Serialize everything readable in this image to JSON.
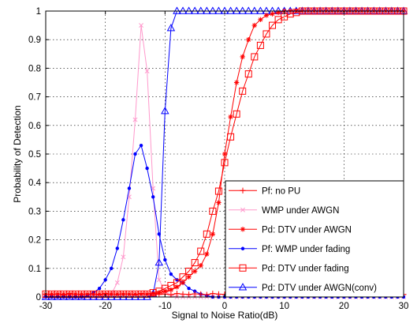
{
  "chart_data": {
    "type": "line",
    "xlabel": "Signal to Noise Ratio(dB)",
    "ylabel": "Probability of Detection",
    "xlim": [
      -30,
      30
    ],
    "ylim": [
      0,
      1
    ],
    "xticks": [
      -30,
      -20,
      -10,
      0,
      10,
      20,
      30
    ],
    "yticks": [
      0,
      0.1,
      0.2,
      0.3,
      0.4,
      0.5,
      0.6,
      0.7,
      0.8,
      0.9,
      1
    ],
    "grid": true,
    "legend_position": "bottom-right",
    "series": [
      {
        "name": "Pf: no PU",
        "color": "#ff0000",
        "marker": "plus",
        "x": [
          -30,
          -29,
          -28,
          -27,
          -26,
          -25,
          -24,
          -23,
          -22,
          -21,
          -20,
          -19,
          -18,
          -17,
          -16,
          -15,
          -14,
          -13,
          -12,
          -11,
          -10,
          -9,
          -8,
          -7,
          -6,
          -5,
          -4,
          -3,
          -2,
          -1,
          0,
          1,
          2,
          3,
          4,
          5,
          6,
          7,
          8,
          9,
          10,
          11,
          12,
          13,
          14,
          15,
          16,
          17,
          18,
          19,
          20,
          21,
          22,
          23,
          24,
          25,
          26,
          27,
          28,
          29,
          30
        ],
        "y": [
          0.01,
          0.009,
          0.011,
          0.008,
          0.012,
          0.01,
          0.009,
          0.011,
          0.01,
          0.008,
          0.012,
          0.01,
          0.009,
          0.011,
          0.01,
          0.008,
          0.012,
          0.01,
          0.009,
          0.011,
          0.01,
          0.008,
          0.012,
          0.01,
          0.009,
          0.011,
          0.01,
          0.008,
          0.012,
          0.01,
          0.009,
          0.011,
          0.01,
          0.008,
          0.012,
          0.01,
          0.009,
          0.011,
          0.01,
          0.008,
          0.012,
          0.01,
          0.009,
          0.011,
          0.01,
          0.008,
          0.012,
          0.01,
          0.009,
          0.011,
          0.01,
          0.008,
          0.012,
          0.01,
          0.009,
          0.011,
          0.01,
          0.008,
          0.012,
          0.01,
          0.009
        ]
      },
      {
        "name": "WMP under AWGN",
        "color": "#ff99cc",
        "marker": "x",
        "x": [
          -30,
          -29,
          -28,
          -27,
          -26,
          -25,
          -24,
          -23,
          -22,
          -21,
          -20,
          -19,
          -18,
          -17,
          -16,
          -15,
          -14,
          -13,
          -12,
          -11,
          -10,
          -9,
          -8,
          -7,
          -6,
          -5,
          -4,
          -3,
          -2,
          -1,
          0,
          1,
          2,
          3,
          4,
          5,
          6,
          7,
          8,
          9,
          10,
          11,
          12,
          13,
          14,
          15,
          16,
          17,
          18,
          19,
          20,
          21,
          22,
          23,
          24,
          25,
          26,
          27,
          28,
          29,
          30
        ],
        "y": [
          0,
          0,
          0,
          0,
          0,
          0,
          0,
          0,
          0,
          0,
          0.002,
          0.01,
          0.05,
          0.14,
          0.35,
          0.62,
          0.95,
          0.79,
          0.38,
          0.06,
          0.02,
          0.005,
          0,
          0,
          0,
          0,
          0,
          0,
          0,
          0,
          0,
          0,
          0,
          0,
          0,
          0,
          0,
          0,
          0,
          0,
          0,
          0,
          0,
          0,
          0,
          0,
          0,
          0,
          0,
          0,
          0,
          0,
          0,
          0,
          0,
          0,
          0,
          0,
          0,
          0,
          0
        ]
      },
      {
        "name": "Pd: DTV under AWGN",
        "color": "#ff0000",
        "marker": "star",
        "x": [
          -30,
          -29,
          -28,
          -27,
          -26,
          -25,
          -24,
          -23,
          -22,
          -21,
          -20,
          -19,
          -18,
          -17,
          -16,
          -15,
          -14,
          -13,
          -12,
          -11,
          -10,
          -9,
          -8,
          -7,
          -6,
          -5,
          -4,
          -3,
          -2,
          -1,
          0,
          1,
          2,
          3,
          4,
          5,
          6,
          7,
          8,
          9,
          10,
          11,
          12,
          13,
          14,
          15,
          16,
          17,
          18,
          19,
          20,
          21,
          22,
          23,
          24,
          25,
          26,
          27,
          28,
          29,
          30
        ],
        "y": [
          0.01,
          0.01,
          0.01,
          0.01,
          0.01,
          0.01,
          0.01,
          0.01,
          0.01,
          0.01,
          0.01,
          0.01,
          0.01,
          0.01,
          0.01,
          0.01,
          0.01,
          0.01,
          0.012,
          0.015,
          0.02,
          0.025,
          0.035,
          0.05,
          0.07,
          0.09,
          0.11,
          0.15,
          0.22,
          0.33,
          0.5,
          0.63,
          0.75,
          0.84,
          0.9,
          0.95,
          0.97,
          0.985,
          0.99,
          0.995,
          1,
          1,
          1,
          1,
          1,
          1,
          1,
          1,
          1,
          1,
          1,
          1,
          1,
          1,
          1,
          1,
          1,
          1,
          1,
          1,
          1
        ]
      },
      {
        "name": "Pf: WMP under fading",
        "color": "#0000ff",
        "marker": "dot",
        "x": [
          -30,
          -29,
          -28,
          -27,
          -26,
          -25,
          -24,
          -23,
          -22,
          -21,
          -20,
          -19,
          -18,
          -17,
          -16,
          -15,
          -14,
          -13,
          -12,
          -11,
          -10,
          -9,
          -8,
          -7,
          -6,
          -5,
          -4,
          -3,
          -2,
          -1,
          0,
          1,
          2,
          3,
          4,
          5,
          6,
          7,
          8,
          9,
          10,
          11,
          12,
          13,
          14,
          15,
          16,
          17,
          18,
          19,
          20,
          21,
          22,
          23,
          24,
          25,
          26,
          27,
          28,
          29,
          30
        ],
        "y": [
          0,
          0,
          0,
          0,
          0,
          0,
          0,
          0.005,
          0.015,
          0.03,
          0.06,
          0.1,
          0.17,
          0.27,
          0.38,
          0.5,
          0.53,
          0.45,
          0.35,
          0.22,
          0.13,
          0.08,
          0.06,
          0.05,
          0.03,
          0.02,
          0.01,
          0.005,
          0,
          0,
          0,
          0,
          0,
          0,
          0,
          0,
          0,
          0,
          0,
          0,
          0,
          0,
          0,
          0,
          0,
          0,
          0,
          0,
          0,
          0,
          0,
          0,
          0,
          0,
          0,
          0,
          0,
          0,
          0,
          0,
          0
        ]
      },
      {
        "name": "Pd: DTV under fading",
        "color": "#ff0000",
        "marker": "square",
        "x": [
          -30,
          -29,
          -28,
          -27,
          -26,
          -25,
          -24,
          -23,
          -22,
          -21,
          -20,
          -19,
          -18,
          -17,
          -16,
          -15,
          -14,
          -13,
          -12,
          -11,
          -10,
          -9,
          -8,
          -7,
          -6,
          -5,
          -4,
          -3,
          -2,
          -1,
          0,
          1,
          2,
          3,
          4,
          5,
          6,
          7,
          8,
          9,
          10,
          11,
          12,
          13,
          14,
          15,
          16,
          17,
          18,
          19,
          20,
          21,
          22,
          23,
          24,
          25,
          26,
          27,
          28,
          29,
          30
        ],
        "y": [
          0.01,
          0.01,
          0.01,
          0.01,
          0.01,
          0.01,
          0.01,
          0.01,
          0.01,
          0.01,
          0.01,
          0.01,
          0.01,
          0.01,
          0.01,
          0.01,
          0.01,
          0.01,
          0.015,
          0.02,
          0.03,
          0.04,
          0.05,
          0.07,
          0.09,
          0.12,
          0.16,
          0.22,
          0.3,
          0.37,
          0.47,
          0.56,
          0.64,
          0.72,
          0.78,
          0.84,
          0.88,
          0.92,
          0.95,
          0.97,
          0.98,
          0.99,
          0.995,
          1,
          1,
          1,
          1,
          1,
          1,
          1,
          1,
          1,
          1,
          1,
          1,
          1,
          1,
          1,
          1,
          1,
          1
        ]
      },
      {
        "name": "Pd: DTV under AWGN(conv)",
        "color": "#0000ff",
        "marker": "triangle",
        "x": [
          -30,
          -29,
          -28,
          -27,
          -26,
          -25,
          -24,
          -23,
          -22,
          -21,
          -20,
          -19,
          -18,
          -17,
          -16,
          -15,
          -14,
          -13,
          -12,
          -11,
          -10,
          -9,
          -8,
          -7,
          -6,
          -5,
          -4,
          -3,
          -2,
          -1,
          0,
          1,
          2,
          3,
          4,
          5,
          6,
          7,
          8,
          9,
          10,
          11,
          12,
          13,
          14,
          15,
          16,
          17,
          18,
          19,
          20,
          21,
          22,
          23,
          24,
          25,
          26,
          27,
          28,
          29,
          30
        ],
        "y": [
          0,
          0,
          0,
          0,
          0,
          0,
          0,
          0,
          0,
          0,
          0,
          0,
          0,
          0,
          0,
          0,
          0,
          0,
          0.01,
          0.12,
          0.65,
          0.94,
          1,
          1,
          1,
          1,
          1,
          1,
          1,
          1,
          1,
          1,
          1,
          1,
          1,
          1,
          1,
          1,
          1,
          1,
          1,
          1,
          1,
          1,
          1,
          1,
          1,
          1,
          1,
          1,
          1,
          1,
          1,
          1,
          1,
          1,
          1,
          1,
          1,
          1,
          1
        ]
      }
    ]
  }
}
